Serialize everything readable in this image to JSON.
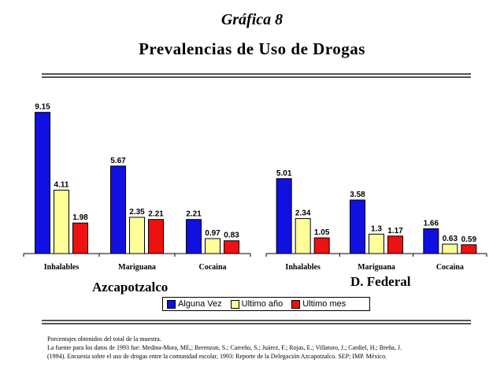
{
  "header": {
    "supertitle": "Gráfica 8",
    "title": "Prevalencias de Uso de Drogas"
  },
  "chart_data": [
    {
      "type": "bar",
      "group_label": "Azcapotzalco",
      "categories": [
        "Inhalables",
        "Mariguana",
        "Cocaina"
      ],
      "series": [
        {
          "name": "Alguna Vez",
          "color": "#1010e0",
          "values": [
            9.15,
            5.67,
            2.21
          ],
          "labels": [
            "9.15",
            "5.67",
            "2.21"
          ]
        },
        {
          "name": "Ultimo año",
          "color": "#ffff99",
          "values": [
            4.11,
            2.35,
            0.97
          ],
          "labels": [
            "4.11",
            "2.35",
            "0.97"
          ]
        },
        {
          "name": "Ultimo mes",
          "color": "#ee1111",
          "values": [
            1.98,
            2.21,
            0.83
          ],
          "labels": [
            "1.98",
            "2.21",
            "0.83"
          ]
        }
      ],
      "ylim": [
        0,
        10
      ],
      "grid": false
    },
    {
      "type": "bar",
      "group_label": "D. Federal",
      "categories": [
        "Inhalables",
        "Mariguana",
        "Cocaina"
      ],
      "series": [
        {
          "name": "Alguna Vez",
          "color": "#1010e0",
          "values": [
            5.01,
            3.58,
            1.66
          ],
          "labels": [
            "5.01",
            "3.58",
            "1.66"
          ]
        },
        {
          "name": "Ultimo año",
          "color": "#ffff99",
          "values": [
            2.34,
            1.3,
            0.63
          ],
          "labels": [
            "2.34",
            "1.3",
            "0.63"
          ]
        },
        {
          "name": "Ultimo mes",
          "color": "#ee1111",
          "values": [
            1.05,
            1.17,
            0.59
          ],
          "labels": [
            "1.05",
            "1.17",
            "0.59"
          ]
        }
      ],
      "ylim": [
        0,
        10
      ],
      "grid": false
    }
  ],
  "legend": {
    "placement": "bottom",
    "items": [
      {
        "label": "Alguna Vez",
        "color": "#1010e0"
      },
      {
        "label": "Ultimo año",
        "color": "#ffff99"
      },
      {
        "label": "Ultimo mes",
        "color": "#ee1111"
      }
    ]
  },
  "footnote": {
    "line1": "Porcentajes obtenidos del total de la muestra.",
    "line2": "La fuente para los datos de 1993 fue: Medina-Mora, ME,; Berenzon, S.; Carreño, S.; Juárez, F.; Rojas, E.; Villatoro, J.; Cardiel, H.; Breña, J.",
    "line3": "(1994). Encuesta sobre el uso de drogas entre la comunidad escolar, 1993: Reporte de la Delegación Azcapotzalco. SEP; IMP. México."
  }
}
